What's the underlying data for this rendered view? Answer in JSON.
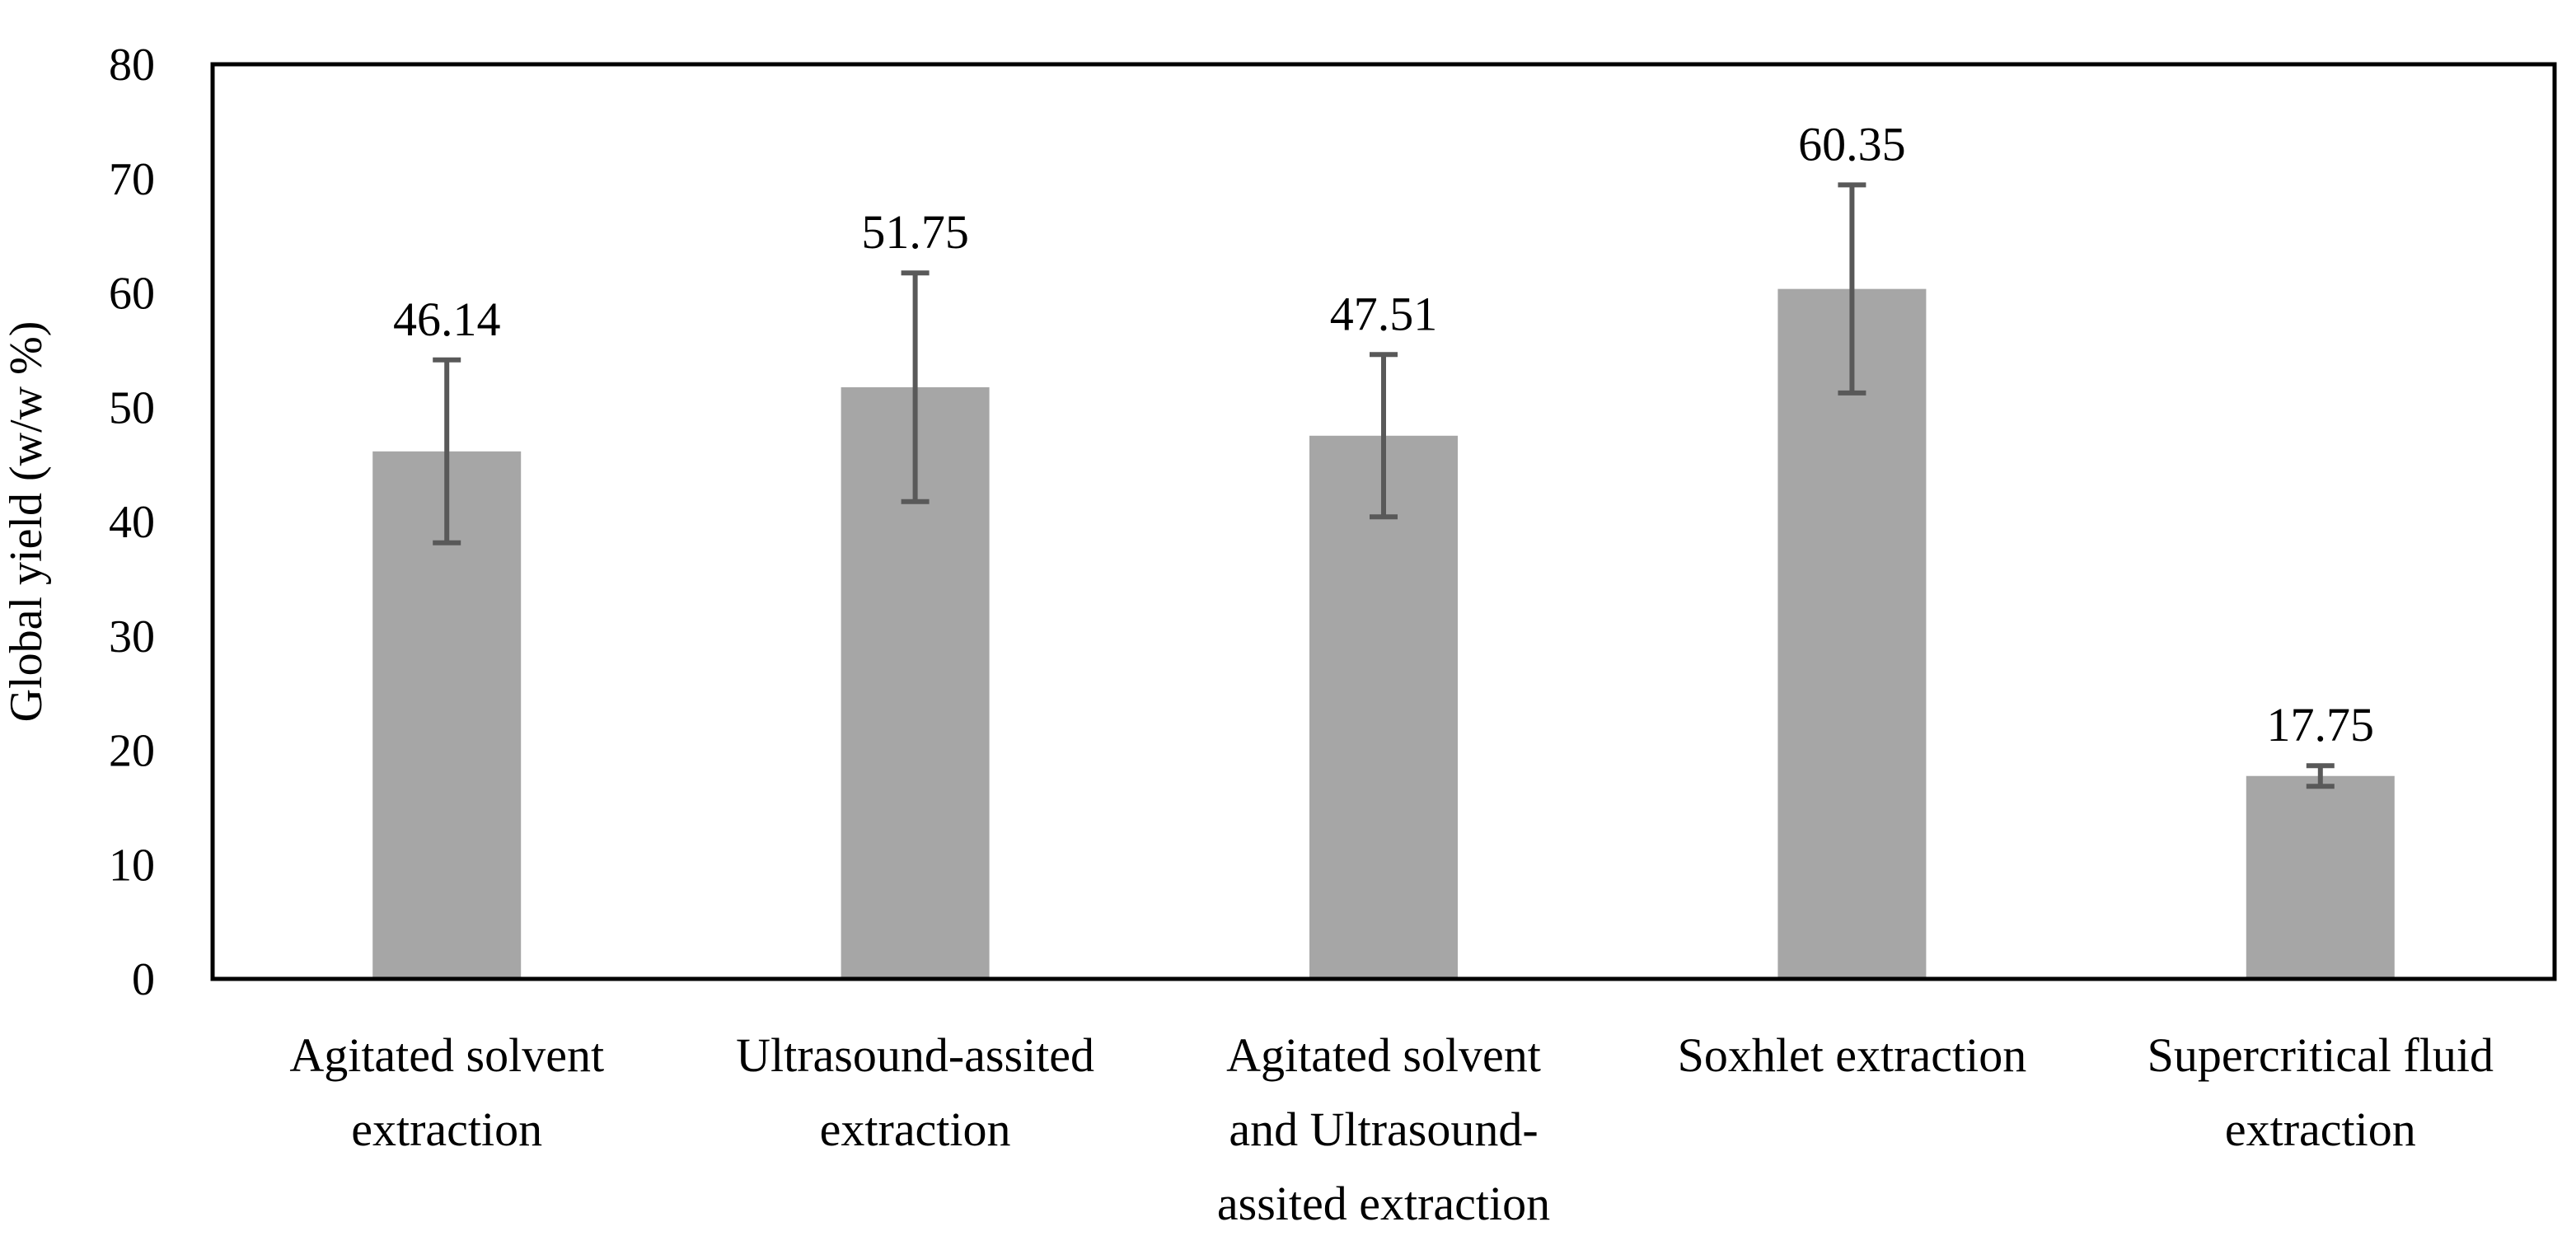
{
  "chart_data": {
    "type": "bar",
    "title": "",
    "xlabel": "",
    "ylabel": "Global yield (w/w %)",
    "ylim": [
      0,
      80
    ],
    "yticks": [
      0,
      10,
      20,
      30,
      40,
      50,
      60,
      70,
      80
    ],
    "grid": false,
    "legend": "none",
    "categories": [
      [
        "Agitated solvent",
        "extraction"
      ],
      [
        "Ultrasound-assited",
        "extraction"
      ],
      [
        "Agitated solvent",
        "and Ultrasound-",
        "assited extraction"
      ],
      [
        "Soxhlet extraction"
      ],
      [
        "Supercritical fluid",
        "extraction"
      ]
    ],
    "values": [
      46.14,
      51.75,
      47.51,
      60.35,
      17.75
    ],
    "data_labels": [
      "46.14",
      "51.75",
      "47.51",
      "60.35",
      "17.75"
    ],
    "error": [
      8.0,
      10.0,
      7.1,
      9.1,
      0.9
    ],
    "colors": {
      "bar": "#a6a6a6",
      "error_bar": "#595959",
      "axis": "#000000"
    }
  }
}
